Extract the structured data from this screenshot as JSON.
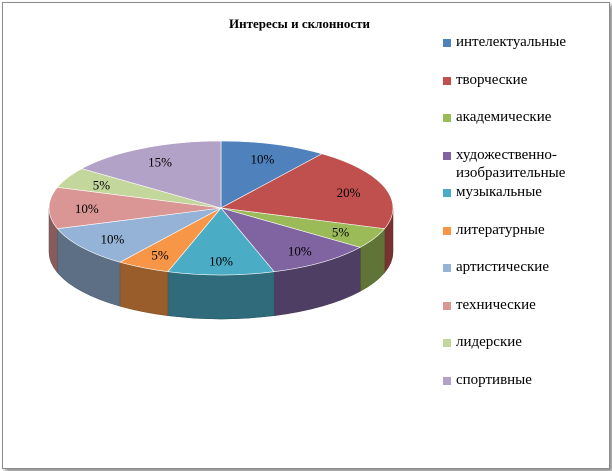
{
  "chart_data": {
    "type": "pie",
    "title": "Интересы и склонности",
    "categories": [
      "интелектуальные",
      "творческие",
      "академические",
      "художественно-изобразительные",
      "музыкальные",
      "литературные",
      "артистические",
      "технические",
      "лидерские",
      "спортивные"
    ],
    "values": [
      10,
      20,
      5,
      10,
      10,
      5,
      10,
      10,
      5,
      15
    ],
    "value_labels": [
      "10%",
      "20%",
      "5%",
      "10%",
      "10%",
      "5%",
      "10%",
      "10%",
      "5%",
      "15%"
    ],
    "colors": [
      "#4f81bd",
      "#c0504d",
      "#9bbb59",
      "#8064a2",
      "#4bacc6",
      "#f79646",
      "#95b3d7",
      "#da9694",
      "#c3d69b",
      "#b3a2c7"
    ],
    "legend_position": "right",
    "style": "3d"
  },
  "legend": {
    "items": [
      {
        "label": "интелектуальные"
      },
      {
        "label": "творческие"
      },
      {
        "label": "академические"
      },
      {
        "label": "художественно-\nизобразительные"
      },
      {
        "label": "музыкальные"
      },
      {
        "label": "литературные"
      },
      {
        "label": "артистические"
      },
      {
        "label": "технические"
      },
      {
        "label": "лидерские"
      },
      {
        "label": "спортивные"
      }
    ]
  }
}
